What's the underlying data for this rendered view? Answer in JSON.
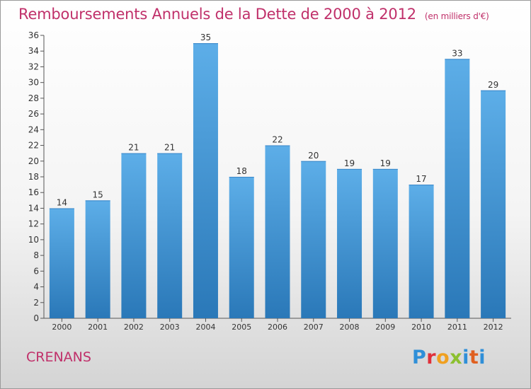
{
  "header": {
    "title": "Remboursements Annuels de la Dette de 2000 à 2012",
    "unit": "(en milliers d'€)"
  },
  "footer": {
    "commune": "CRENANS",
    "brand": "Proxiti",
    "brand_colors": [
      "#2f8fd8",
      "#e0303a",
      "#f0a020",
      "#8cc030",
      "#2f8fd8",
      "#e06020",
      "#2f8fd8"
    ]
  },
  "chart_data": {
    "type": "bar",
    "title": "Remboursements Annuels de la Dette de 2000 à 2012",
    "xlabel": "",
    "ylabel": "",
    "categories": [
      "2000",
      "2001",
      "2002",
      "2003",
      "2004",
      "2005",
      "2006",
      "2007",
      "2008",
      "2009",
      "2010",
      "2011",
      "2012"
    ],
    "values": [
      14,
      15,
      21,
      21,
      35,
      18,
      22,
      20,
      19,
      19,
      17,
      33,
      29
    ],
    "ylim": [
      0,
      36
    ],
    "ytick_step": 2,
    "grid": false,
    "bar_color_top": "#5daee8",
    "bar_color_bottom": "#2a78b8"
  }
}
